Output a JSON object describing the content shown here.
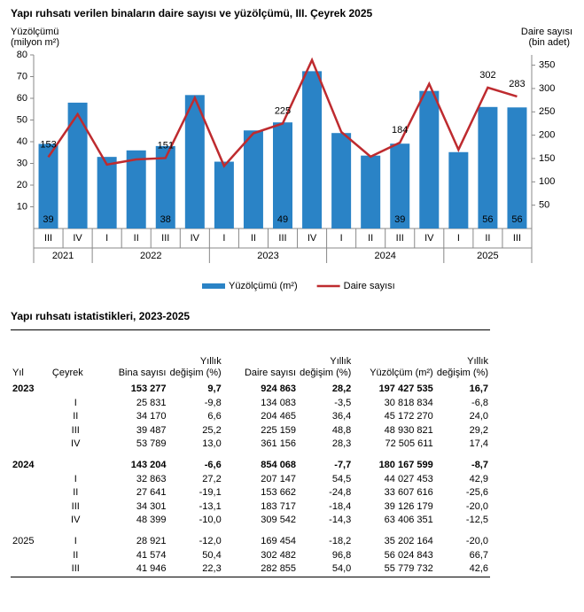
{
  "chart_data": {
    "type": "bar",
    "title": "Yapı ruhsatı verilen binaların daire sayısı ve yüzölçümü, III. Çeyrek 2025",
    "y_label": [
      "Yüzölçümü",
      "(milyon m²)"
    ],
    "y2_label": [
      "Daire sayısı",
      "(bin adet)"
    ],
    "categories": [
      "III",
      "IV",
      "I",
      "II",
      "III",
      "IV",
      "I",
      "II",
      "III",
      "IV",
      "I",
      "II",
      "III",
      "IV",
      "I",
      "II",
      "III"
    ],
    "groups": [
      "2021",
      "2022",
      "2023",
      "2024",
      "2025"
    ],
    "ylim": [
      0,
      80
    ],
    "yticks": [
      10,
      20,
      30,
      40,
      50,
      60,
      70,
      80
    ],
    "y2lim": [
      0,
      372
    ],
    "y2ticks": [
      50,
      100,
      150,
      200,
      250,
      300,
      350
    ],
    "grid": false,
    "legend": "bottom",
    "series": [
      {
        "name": "Yüzölçümü (m²)",
        "type": "bar",
        "color": "#2a83c6",
        "values": [
          39,
          58,
          33,
          36,
          38,
          61.5,
          30.8,
          45.2,
          48.9,
          72.5,
          44.0,
          33.6,
          39.1,
          63.4,
          35.2,
          56.0,
          55.8
        ],
        "value_labels": [
          "39",
          null,
          null,
          null,
          "38",
          null,
          null,
          null,
          "49",
          null,
          null,
          null,
          "39",
          null,
          null,
          "56",
          "56"
        ]
      },
      {
        "name": "Daire sayısı",
        "type": "line",
        "axis": "y2",
        "color": "#be2b2f",
        "values": [
          153,
          245,
          137,
          148,
          151,
          280,
          134,
          204,
          225,
          361,
          207,
          154,
          184,
          310,
          169,
          302,
          283
        ],
        "value_labels": [
          "153",
          null,
          null,
          null,
          "151",
          null,
          null,
          null,
          "225",
          null,
          null,
          null,
          "184",
          null,
          null,
          "302",
          "283"
        ]
      }
    ]
  },
  "table": {
    "title": "Yapı ruhsatı istatistikleri, 2023-2025",
    "header": [
      "Yıl",
      "Çeyrek",
      "Bina sayısı",
      "Yıllık değişim (%)",
      "Daire sayısı",
      "Yıllık değişim (%)",
      "Yüzölçüm (m²)",
      "Yıllık değişim (%)"
    ],
    "rows": [
      {
        "bold": true,
        "cells": [
          "2023",
          null,
          "153 277",
          "9,7",
          "924 863",
          "28,2",
          "197 427 535",
          "16,7"
        ]
      },
      {
        "cells": [
          null,
          "I",
          "25 831",
          "-9,8",
          "134 083",
          "-3,5",
          "30 818 834",
          "-6,8"
        ]
      },
      {
        "cells": [
          null,
          "II",
          "34 170",
          "6,6",
          "204 465",
          "36,4",
          "45 172 270",
          "24,0"
        ]
      },
      {
        "cells": [
          null,
          "III",
          "39 487",
          "25,2",
          "225 159",
          "48,8",
          "48 930 821",
          "29,2"
        ]
      },
      {
        "cells": [
          null,
          "IV",
          "53 789",
          "13,0",
          "361 156",
          "28,3",
          "72 505 611",
          "17,4"
        ]
      },
      {
        "bold": true,
        "cells": [
          "2024",
          null,
          "143 204",
          "-6,6",
          "854 068",
          "-7,7",
          "180 167 599",
          "-8,7"
        ]
      },
      {
        "cells": [
          null,
          "I",
          "32 863",
          "27,2",
          "207 147",
          "54,5",
          "44 027 453",
          "42,9"
        ]
      },
      {
        "cells": [
          null,
          "II",
          "27 641",
          "-19,1",
          "153 662",
          "-24,8",
          "33 607 616",
          "-25,6"
        ]
      },
      {
        "cells": [
          null,
          "III",
          "34 301",
          "-13,1",
          "183 717",
          "-18,4",
          "39 126 179",
          "-20,0"
        ]
      },
      {
        "cells": [
          null,
          "IV",
          "48 399",
          "-10,0",
          "309 542",
          "-14,3",
          "63 406 351",
          "-12,5"
        ]
      },
      {
        "cells": [
          "2025",
          "I",
          "28 921",
          "-12,0",
          "169 454",
          "-18,2",
          "35 202 164",
          "-20,0"
        ]
      },
      {
        "cells": [
          null,
          "II",
          "41 574",
          "50,4",
          "302 482",
          "96,8",
          "56 024 843",
          "66,7"
        ]
      },
      {
        "cells": [
          null,
          "III",
          "41 946",
          "22,3",
          "282 855",
          "54,0",
          "55 779 732",
          "42,6"
        ]
      }
    ]
  }
}
